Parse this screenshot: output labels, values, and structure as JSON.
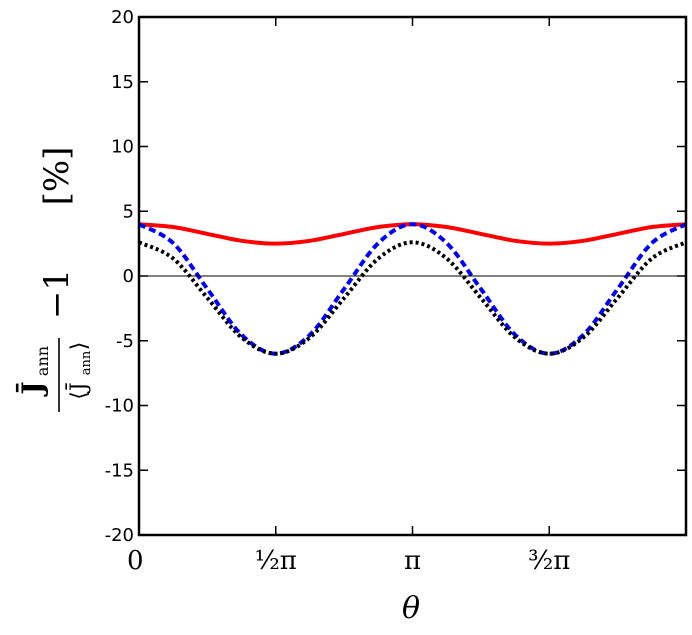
{
  "chart_data": {
    "type": "line",
    "title": "",
    "xlabel": "θ",
    "ylabel": {
      "bar_j": "J̄",
      "subscript": "ann",
      "denominator": "⟨J̄",
      "denominator_close": "⟩",
      "minus_one": "−1",
      "unit": "[%]"
    },
    "xlim": [
      0,
      6.283185307179586
    ],
    "ylim": [
      -20,
      20
    ],
    "xticks": [
      {
        "value": 0,
        "label": "0"
      },
      {
        "value": 1.5707963267948966,
        "label": "½π"
      },
      {
        "value": 3.141592653589793,
        "label": "π"
      },
      {
        "value": 4.71238898038469,
        "label": "³⁄₂π"
      }
    ],
    "yticks": [
      {
        "value": 20,
        "label": "20"
      },
      {
        "value": 15,
        "label": "15"
      },
      {
        "value": 10,
        "label": "10"
      },
      {
        "value": 5,
        "label": "5"
      },
      {
        "value": 0,
        "label": "0"
      },
      {
        "value": -5,
        "label": "-5"
      },
      {
        "value": -10,
        "label": "-10"
      },
      {
        "value": -15,
        "label": "-15"
      },
      {
        "value": -20,
        "label": "-20"
      }
    ],
    "zero_line": true,
    "grid": false,
    "series": [
      {
        "color": "#ff0000",
        "style": "solid",
        "x": [
          0,
          0.3927,
          0.7854,
          1.1781,
          1.5708,
          1.9635,
          2.3562,
          2.7489,
          3.1416,
          3.5343,
          3.927,
          4.3197,
          4.7124,
          5.1051,
          5.4978,
          5.8905,
          6.2832
        ],
        "y": [
          4.0,
          3.78,
          3.25,
          2.72,
          2.5,
          2.72,
          3.25,
          3.78,
          4.0,
          3.78,
          3.25,
          2.72,
          2.5,
          2.72,
          3.25,
          3.78,
          4.0
        ]
      },
      {
        "color": "#0000ff",
        "style": "dashed",
        "x": [
          0,
          0.3927,
          0.7854,
          1.1781,
          1.5708,
          1.9635,
          2.3562,
          2.7489,
          3.1416,
          3.5343,
          3.927,
          4.3197,
          4.7124,
          5.1051,
          5.4978,
          5.8905,
          6.2832
        ],
        "y": [
          4.0,
          2.54,
          -1.0,
          -4.54,
          -6.0,
          -4.54,
          -1.0,
          2.54,
          4.0,
          2.54,
          -1.0,
          -4.54,
          -6.0,
          -4.54,
          -1.0,
          2.54,
          4.0
        ]
      },
      {
        "color": "#000000",
        "style": "dotted",
        "x": [
          0,
          0.3927,
          0.7854,
          1.1781,
          1.5708,
          1.9635,
          2.3562,
          2.7489,
          3.1416,
          3.5343,
          3.927,
          4.3197,
          4.7124,
          5.1051,
          5.4978,
          5.8905,
          6.2832
        ],
        "y": [
          2.6,
          1.35,
          -1.7,
          -4.75,
          -6.0,
          -4.75,
          -1.7,
          1.35,
          2.6,
          1.35,
          -1.7,
          -4.75,
          -6.0,
          -4.75,
          -1.7,
          1.35,
          2.6
        ]
      }
    ]
  }
}
